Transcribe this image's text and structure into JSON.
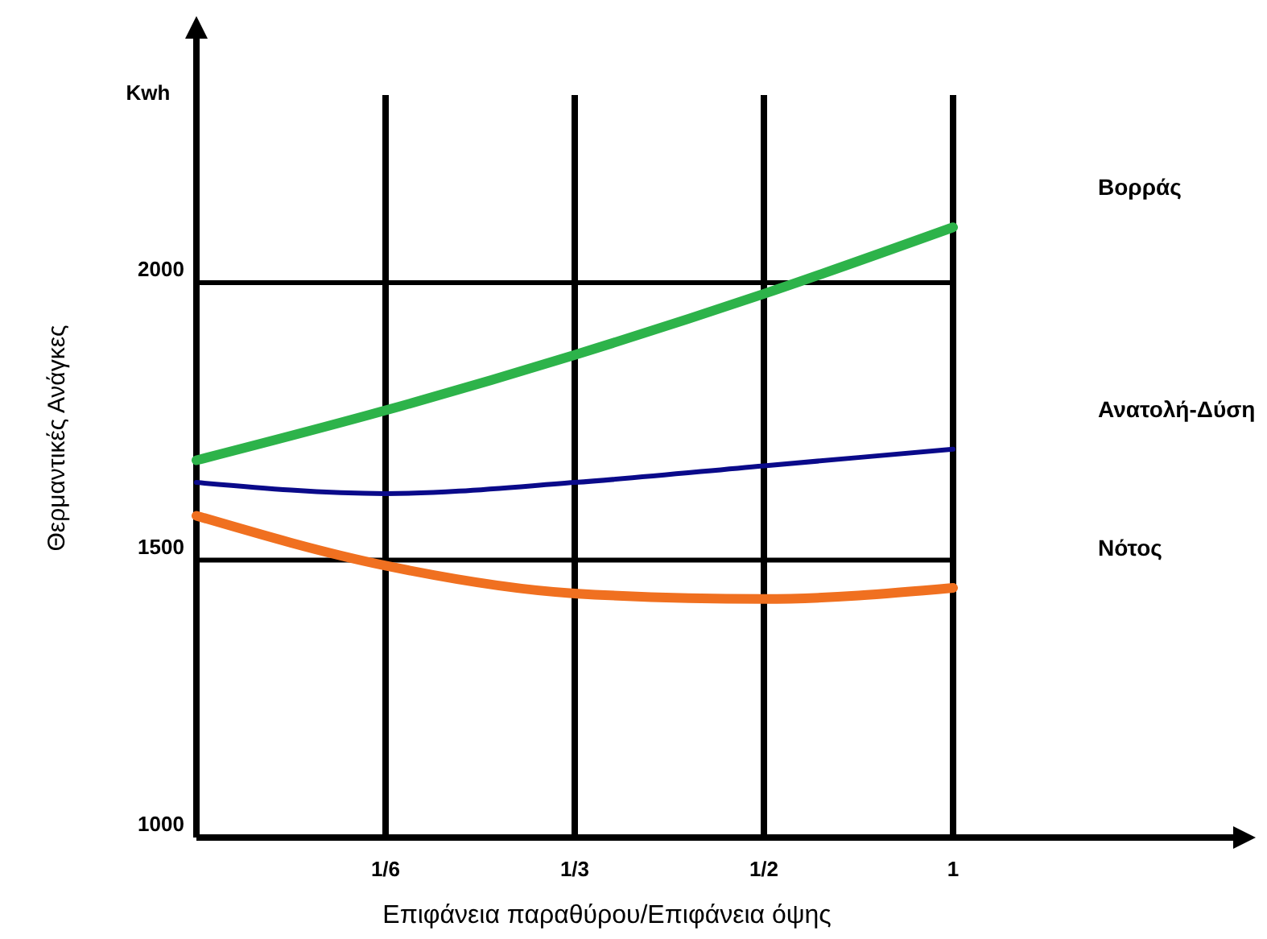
{
  "chart_data": {
    "type": "line",
    "xlabel": "Επιφάνεια παραθύρου/Επιφάνεια όψης",
    "ylabel": "Θερμαντικές Ανάγκες",
    "annotations": [
      "Kwh"
    ],
    "categories": [
      null,
      "1/6",
      "1/3",
      "1/2",
      "1"
    ],
    "series": [
      {
        "name": "Βορράς",
        "color": "#2db34a",
        "values": [
          1680,
          1770,
          1870,
          1980,
          2100
        ]
      },
      {
        "name": "Ανατολή-Δύση",
        "color": "#0a0a8a",
        "values": [
          1640,
          1620,
          1640,
          1670,
          1700
        ]
      },
      {
        "name": "Νότος",
        "color": "#f07020",
        "values": [
          1580,
          1490,
          1440,
          1430,
          1450
        ]
      }
    ],
    "ylim": [
      1000,
      2440
    ],
    "yticks": [
      1000,
      1500,
      2000
    ],
    "grid": true,
    "legend": false,
    "marker": "none",
    "line_style": "solid"
  }
}
